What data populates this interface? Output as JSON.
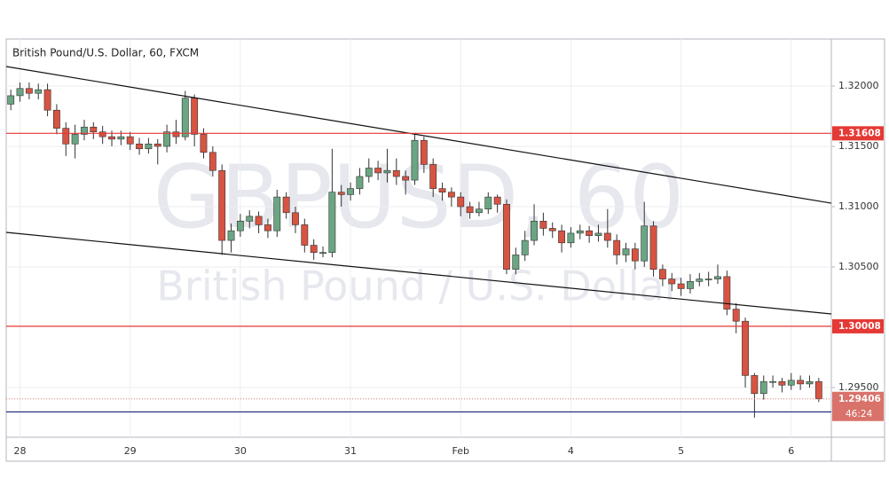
{
  "chart_data": {
    "type": "candlestick",
    "title": "British Pound/U.S. Dollar, 60, FXCM",
    "watermark": "GBPUSD, 60",
    "watermark_subtitle": "British Pound / U.S. Dollar",
    "categories": [
      null,
      "28",
      null,
      null,
      null,
      null,
      null,
      null,
      null,
      null,
      null,
      null,
      null,
      "29",
      null,
      null,
      null,
      null,
      null,
      null,
      null,
      null,
      null,
      null,
      null,
      "30",
      null,
      null,
      null,
      null,
      null,
      null,
      null,
      null,
      null,
      null,
      null,
      "31",
      null,
      null,
      null,
      null,
      null,
      null,
      null,
      null,
      null,
      null,
      null,
      "Feb",
      null,
      null,
      null,
      null,
      null,
      null,
      null,
      null,
      null,
      null,
      null,
      "4",
      null,
      null,
      null,
      null,
      null,
      null,
      null,
      null,
      null,
      null,
      null,
      "5",
      null,
      null,
      null,
      null,
      null,
      null,
      null,
      null,
      null,
      null,
      null,
      "6",
      null,
      null,
      null
    ],
    "open": [
      1.3185,
      1.3192,
      1.3198,
      1.3194,
      1.3197,
      1.318,
      1.3165,
      1.3152,
      1.316,
      1.3166,
      1.3162,
      1.3158,
      1.3156,
      1.3158,
      1.3152,
      1.3148,
      1.3152,
      1.315,
      1.3162,
      1.3158,
      1.319,
      1.316,
      1.3145,
      1.313,
      1.3072,
      1.308,
      1.3088,
      1.3092,
      1.3085,
      1.308,
      1.3108,
      1.3095,
      1.3085,
      1.3068,
      1.3062,
      1.3062,
      1.3112,
      1.311,
      1.3115,
      1.3125,
      1.3132,
      1.3128,
      1.313,
      1.3125,
      1.3122,
      1.3155,
      1.3135,
      1.3115,
      1.3112,
      1.3108,
      1.31,
      1.3095,
      1.3098,
      1.3108,
      1.3102,
      1.3048,
      1.306,
      1.3072,
      1.3088,
      1.3082,
      1.308,
      1.307,
      1.3078,
      1.308,
      1.3076,
      1.3078,
      1.3072,
      1.306,
      1.3065,
      1.3055,
      1.3084,
      1.3048,
      1.304,
      1.3036,
      1.3032,
      1.3038,
      1.304,
      1.304,
      1.3042,
      1.3015,
      1.3005,
      1.296,
      1.2945,
      1.2955,
      1.2955,
      1.2952,
      1.2956,
      1.2953,
      1.2955
    ],
    "high": [
      1.3197,
      1.3203,
      1.3203,
      1.3202,
      1.3202,
      1.3185,
      1.317,
      1.3168,
      1.3172,
      1.317,
      1.3167,
      1.3163,
      1.3163,
      1.3162,
      1.3157,
      1.3157,
      1.3156,
      1.3168,
      1.3172,
      1.3196,
      1.3193,
      1.3165,
      1.315,
      1.3135,
      1.3086,
      1.3094,
      1.3097,
      1.3096,
      1.309,
      1.3114,
      1.3112,
      1.31,
      1.309,
      1.3073,
      1.3067,
      1.3148,
      1.3118,
      1.312,
      1.3132,
      1.314,
      1.3138,
      1.3148,
      1.314,
      1.313,
      1.316,
      1.3158,
      1.314,
      1.312,
      1.3116,
      1.3112,
      1.3104,
      1.3104,
      1.3112,
      1.311,
      1.3106,
      1.3066,
      1.308,
      1.3102,
      1.3095,
      1.3087,
      1.3085,
      1.3083,
      1.3085,
      1.3084,
      1.3085,
      1.3098,
      1.3077,
      1.307,
      1.307,
      1.3104,
      1.3088,
      1.3052,
      1.3045,
      1.3041,
      1.3044,
      1.3045,
      1.3046,
      1.3052,
      1.3047,
      1.302,
      1.3008,
      1.2962,
      1.296,
      1.296,
      1.2958,
      1.2962,
      1.296,
      1.296,
      1.2958
    ],
    "low": [
      1.318,
      1.3187,
      1.3189,
      1.3189,
      1.3175,
      1.316,
      1.3142,
      1.314,
      1.3155,
      1.3156,
      1.3152,
      1.315,
      1.3151,
      1.3147,
      1.3143,
      1.3144,
      1.3135,
      1.3145,
      1.3152,
      1.3155,
      1.315,
      1.314,
      1.3125,
      1.306,
      1.3062,
      1.3075,
      1.3082,
      1.3078,
      1.3074,
      1.3075,
      1.309,
      1.3078,
      1.3062,
      1.3056,
      1.3058,
      1.3058,
      1.31,
      1.3105,
      1.311,
      1.312,
      1.3122,
      1.312,
      1.3118,
      1.311,
      1.3118,
      1.3128,
      1.3108,
      1.3105,
      1.31,
      1.3092,
      1.309,
      1.3092,
      1.3094,
      1.3095,
      1.3044,
      1.3044,
      1.3055,
      1.3068,
      1.3076,
      1.3074,
      1.3062,
      1.3066,
      1.3073,
      1.307,
      1.3071,
      1.3066,
      1.3052,
      1.3054,
      1.3048,
      1.305,
      1.3042,
      1.3034,
      1.303,
      1.3026,
      1.3028,
      1.3034,
      1.3034,
      1.3036,
      1.301,
      1.2995,
      1.295,
      1.2925,
      1.294,
      1.295,
      1.2946,
      1.2948,
      1.2948,
      1.295,
      1.2938
    ],
    "close": [
      1.3192,
      1.3198,
      1.3194,
      1.3197,
      1.318,
      1.3165,
      1.3152,
      1.316,
      1.3166,
      1.3162,
      1.3158,
      1.3156,
      1.3158,
      1.3152,
      1.3148,
      1.3152,
      1.315,
      1.3162,
      1.3158,
      1.319,
      1.316,
      1.3145,
      1.313,
      1.3072,
      1.308,
      1.3088,
      1.3092,
      1.3085,
      1.308,
      1.3108,
      1.3095,
      1.3085,
      1.3068,
      1.3062,
      1.3062,
      1.3112,
      1.311,
      1.3115,
      1.3125,
      1.3132,
      1.3128,
      1.313,
      1.3125,
      1.3122,
      1.3155,
      1.3135,
      1.3115,
      1.3112,
      1.3108,
      1.31,
      1.3095,
      1.3098,
      1.3108,
      1.3102,
      1.3048,
      1.306,
      1.3072,
      1.3088,
      1.3082,
      1.308,
      1.307,
      1.3078,
      1.308,
      1.3076,
      1.3078,
      1.3072,
      1.306,
      1.3065,
      1.3055,
      1.3084,
      1.3048,
      1.304,
      1.3036,
      1.3032,
      1.3038,
      1.304,
      1.304,
      1.3042,
      1.3015,
      1.3005,
      1.296,
      1.2945,
      1.2955,
      1.2955,
      1.2952,
      1.2956,
      1.2953,
      1.2955,
      1.29406
    ],
    "up_color": "#6ba583",
    "down_color": "#d75442",
    "ylim": [
      1.29088,
      1.3239
    ],
    "yticks": [
      {
        "value": 1.32,
        "label": "1.32000"
      },
      {
        "value": 1.315,
        "label": "1.31500"
      },
      {
        "value": 1.31,
        "label": "1.31000"
      },
      {
        "value": 1.305,
        "label": "1.30500"
      },
      {
        "value": 1.295,
        "label": "1.29500"
      }
    ],
    "grid": true,
    "trendlines": [
      {
        "start": 1.32162,
        "end": 1.31029
      },
      {
        "start": 1.30787,
        "end": 1.3011
      }
    ],
    "levels": [
      {
        "value": 1.31608,
        "color": "#e53935"
      },
      {
        "value": 1.30008,
        "color": "#e53935"
      },
      {
        "value": 1.29298,
        "color": "#1a237e"
      }
    ],
    "last_price": 1.29406,
    "last_price_color": "#d9726a",
    "countdown": "46:24"
  }
}
